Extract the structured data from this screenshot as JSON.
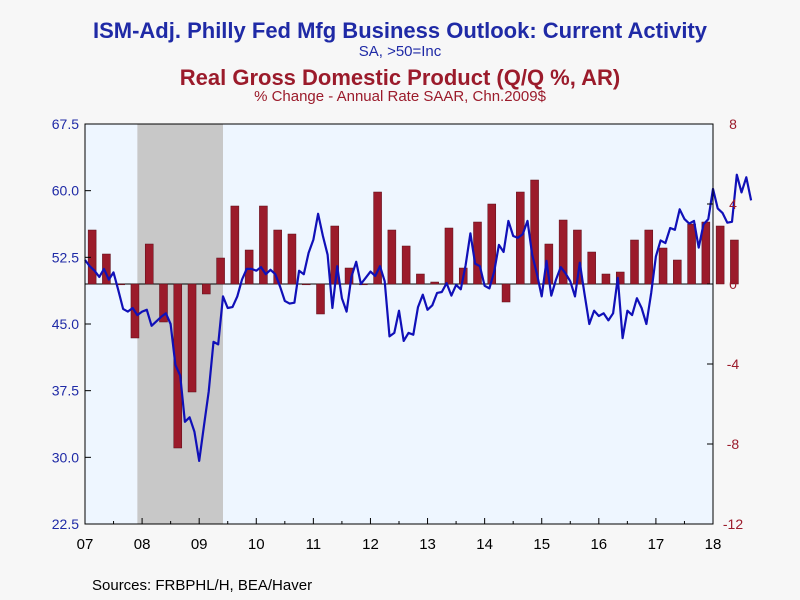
{
  "title": "ISM-Adj. Philly Fed Mfg Business Outlook: Current Activity",
  "subtitle": "SA, >50=Inc",
  "title2": "Real Gross Domestic Product (Q/Q %, AR)",
  "subtitle2": "% Change - Annual Rate     SAAR, Chn.2009$",
  "source": "Sources:  FRBPHL/H, BEA/Haver",
  "colors": {
    "line": "#1010b8",
    "bars": "#9b1b2b",
    "plot_bg": "#eef6ff",
    "recession": "#c8c8c8",
    "left_axis": "#1f2aa6",
    "right_axis": "#9b1b2b"
  },
  "chart_data": {
    "type": "line+bar",
    "x_tick_labels": [
      "07",
      "08",
      "09",
      "10",
      "11",
      "12",
      "13",
      "14",
      "15",
      "16",
      "17",
      "18"
    ],
    "xlim": [
      2007.0,
      2018.0
    ],
    "left_axis": {
      "ticks": [
        "22.5",
        "30.0",
        "37.5",
        "45.0",
        "52.5",
        "60.0",
        "67.5"
      ],
      "ylim": [
        22.5,
        67.5
      ]
    },
    "right_axis": {
      "ticks": [
        "-12",
        "-8",
        "-4",
        "0",
        "4",
        "8"
      ],
      "ylim": [
        -12,
        8
      ]
    },
    "recession": {
      "start": 2007.917,
      "end": 2009.417
    },
    "bar_series": {
      "name": "Real Gross Domestic Product (Q/Q %, AR)",
      "axis": "right",
      "points": [
        {
          "x": 2007.125,
          "y": 2.7
        },
        {
          "x": 2007.375,
          "y": 1.5
        },
        {
          "x": 2007.625,
          "y": 0.0
        },
        {
          "x": 2007.875,
          "y": -2.7
        },
        {
          "x": 2008.125,
          "y": 2.0
        },
        {
          "x": 2008.375,
          "y": -1.9
        },
        {
          "x": 2008.625,
          "y": -8.2
        },
        {
          "x": 2008.875,
          "y": -5.4
        },
        {
          "x": 2009.125,
          "y": -0.5
        },
        {
          "x": 2009.375,
          "y": 1.3
        },
        {
          "x": 2009.625,
          "y": 3.9
        },
        {
          "x": 2009.875,
          "y": 1.7
        },
        {
          "x": 2010.125,
          "y": 3.9
        },
        {
          "x": 2010.375,
          "y": 2.7
        },
        {
          "x": 2010.625,
          "y": 2.5
        },
        {
          "x": 2010.875,
          "y": 0.0
        },
        {
          "x": 2011.125,
          "y": -1.5
        },
        {
          "x": 2011.375,
          "y": 2.9
        },
        {
          "x": 2011.625,
          "y": 0.8
        },
        {
          "x": 2011.875,
          "y": 0.0
        },
        {
          "x": 2012.125,
          "y": 4.6
        },
        {
          "x": 2012.375,
          "y": 2.7
        },
        {
          "x": 2012.625,
          "y": 1.9
        },
        {
          "x": 2012.875,
          "y": 0.5
        },
        {
          "x": 2013.125,
          "y": 0.1
        },
        {
          "x": 2013.375,
          "y": 2.8
        },
        {
          "x": 2013.625,
          "y": 0.8
        },
        {
          "x": 2013.875,
          "y": 3.1
        },
        {
          "x": 2014.125,
          "y": 4.0
        },
        {
          "x": 2014.375,
          "y": -0.9
        },
        {
          "x": 2014.625,
          "y": 4.6
        },
        {
          "x": 2014.875,
          "y": 5.2
        },
        {
          "x": 2015.125,
          "y": 2.0
        },
        {
          "x": 2015.375,
          "y": 3.2
        },
        {
          "x": 2015.625,
          "y": 2.7
        },
        {
          "x": 2015.875,
          "y": 1.6
        },
        {
          "x": 2016.125,
          "y": 0.5
        },
        {
          "x": 2016.375,
          "y": 0.6
        },
        {
          "x": 2016.625,
          "y": 2.2
        },
        {
          "x": 2016.875,
          "y": 2.7
        },
        {
          "x": 2017.125,
          "y": 1.8
        },
        {
          "x": 2017.375,
          "y": 1.2
        },
        {
          "x": 2017.625,
          "y": 3.0
        },
        {
          "x": 2017.875,
          "y": 3.1
        },
        {
          "x": 2018.125,
          "y": 2.9
        },
        {
          "x": 2018.375,
          "y": 2.2
        }
      ]
    },
    "line_series": {
      "name": "ISM-Adj. Philly Fed Mfg Business Outlook: Current Activity",
      "axis": "left",
      "points": [
        {
          "x": 2007.0,
          "y": 52.2
        },
        {
          "x": 2007.083,
          "y": 51.5
        },
        {
          "x": 2007.167,
          "y": 51.0
        },
        {
          "x": 2007.25,
          "y": 50.3
        },
        {
          "x": 2007.333,
          "y": 51.2
        },
        {
          "x": 2007.417,
          "y": 50.0
        },
        {
          "x": 2007.5,
          "y": 50.8
        },
        {
          "x": 2007.583,
          "y": 48.8
        },
        {
          "x": 2007.667,
          "y": 46.7
        },
        {
          "x": 2007.75,
          "y": 46.4
        },
        {
          "x": 2007.833,
          "y": 46.8
        },
        {
          "x": 2007.917,
          "y": 46.0
        },
        {
          "x": 2008.0,
          "y": 46.4
        },
        {
          "x": 2008.083,
          "y": 46.6
        },
        {
          "x": 2008.167,
          "y": 44.8
        },
        {
          "x": 2008.25,
          "y": 45.3
        },
        {
          "x": 2008.333,
          "y": 45.8
        },
        {
          "x": 2008.417,
          "y": 46.2
        },
        {
          "x": 2008.5,
          "y": 45.0
        },
        {
          "x": 2008.583,
          "y": 40.4
        },
        {
          "x": 2008.667,
          "y": 39.2
        },
        {
          "x": 2008.75,
          "y": 34.0
        },
        {
          "x": 2008.833,
          "y": 34.5
        },
        {
          "x": 2008.917,
          "y": 32.9
        },
        {
          "x": 2009.0,
          "y": 29.6
        },
        {
          "x": 2009.083,
          "y": 33.5
        },
        {
          "x": 2009.167,
          "y": 37.4
        },
        {
          "x": 2009.25,
          "y": 43.0
        },
        {
          "x": 2009.333,
          "y": 42.7
        },
        {
          "x": 2009.417,
          "y": 48.1
        },
        {
          "x": 2009.5,
          "y": 46.8
        },
        {
          "x": 2009.583,
          "y": 46.9
        },
        {
          "x": 2009.667,
          "y": 48.1
        },
        {
          "x": 2009.75,
          "y": 50.0
        },
        {
          "x": 2009.833,
          "y": 51.2
        },
        {
          "x": 2009.917,
          "y": 51.2
        },
        {
          "x": 2010.0,
          "y": 51.0
        },
        {
          "x": 2010.083,
          "y": 51.4
        },
        {
          "x": 2010.167,
          "y": 50.6
        },
        {
          "x": 2010.25,
          "y": 51.1
        },
        {
          "x": 2010.333,
          "y": 50.6
        },
        {
          "x": 2010.417,
          "y": 49.2
        },
        {
          "x": 2010.5,
          "y": 47.6
        },
        {
          "x": 2010.583,
          "y": 47.3
        },
        {
          "x": 2010.667,
          "y": 47.4
        },
        {
          "x": 2010.75,
          "y": 51.0
        },
        {
          "x": 2010.833,
          "y": 50.6
        },
        {
          "x": 2010.917,
          "y": 53.0
        },
        {
          "x": 2011.0,
          "y": 54.5
        },
        {
          "x": 2011.083,
          "y": 57.4
        },
        {
          "x": 2011.167,
          "y": 54.9
        },
        {
          "x": 2011.25,
          "y": 52.8
        },
        {
          "x": 2011.333,
          "y": 46.8
        },
        {
          "x": 2011.417,
          "y": 51.5
        },
        {
          "x": 2011.5,
          "y": 47.9
        },
        {
          "x": 2011.583,
          "y": 46.4
        },
        {
          "x": 2011.667,
          "y": 50.3
        },
        {
          "x": 2011.75,
          "y": 52.0
        },
        {
          "x": 2011.833,
          "y": 49.5
        },
        {
          "x": 2011.917,
          "y": 50.2
        },
        {
          "x": 2012.0,
          "y": 50.9
        },
        {
          "x": 2012.083,
          "y": 50.4
        },
        {
          "x": 2012.167,
          "y": 51.5
        },
        {
          "x": 2012.25,
          "y": 49.8
        },
        {
          "x": 2012.333,
          "y": 43.6
        },
        {
          "x": 2012.417,
          "y": 44.0
        },
        {
          "x": 2012.5,
          "y": 46.5
        },
        {
          "x": 2012.583,
          "y": 43.1
        },
        {
          "x": 2012.667,
          "y": 44.0
        },
        {
          "x": 2012.75,
          "y": 43.8
        },
        {
          "x": 2012.833,
          "y": 46.9
        },
        {
          "x": 2012.917,
          "y": 48.3
        },
        {
          "x": 2013.0,
          "y": 46.6
        },
        {
          "x": 2013.083,
          "y": 47.1
        },
        {
          "x": 2013.167,
          "y": 48.5
        },
        {
          "x": 2013.25,
          "y": 48.6
        },
        {
          "x": 2013.333,
          "y": 49.6
        },
        {
          "x": 2013.417,
          "y": 48.2
        },
        {
          "x": 2013.5,
          "y": 49.4
        },
        {
          "x": 2013.583,
          "y": 48.9
        },
        {
          "x": 2013.667,
          "y": 51.6
        },
        {
          "x": 2013.75,
          "y": 55.2
        },
        {
          "x": 2013.833,
          "y": 51.8
        },
        {
          "x": 2013.917,
          "y": 51.5
        },
        {
          "x": 2014.0,
          "y": 49.3
        },
        {
          "x": 2014.083,
          "y": 49.0
        },
        {
          "x": 2014.167,
          "y": 50.9
        },
        {
          "x": 2014.25,
          "y": 53.9
        },
        {
          "x": 2014.333,
          "y": 53.1
        },
        {
          "x": 2014.417,
          "y": 56.6
        },
        {
          "x": 2014.5,
          "y": 54.9
        },
        {
          "x": 2014.583,
          "y": 54.7
        },
        {
          "x": 2014.667,
          "y": 55.1
        },
        {
          "x": 2014.75,
          "y": 56.6
        },
        {
          "x": 2014.833,
          "y": 52.8
        },
        {
          "x": 2014.917,
          "y": 50.6
        },
        {
          "x": 2015.0,
          "y": 48.1
        },
        {
          "x": 2015.083,
          "y": 52.1
        },
        {
          "x": 2015.167,
          "y": 48.2
        },
        {
          "x": 2015.25,
          "y": 50.0
        },
        {
          "x": 2015.333,
          "y": 51.4
        },
        {
          "x": 2015.417,
          "y": 50.7
        },
        {
          "x": 2015.5,
          "y": 49.8
        },
        {
          "x": 2015.583,
          "y": 48.1
        },
        {
          "x": 2015.667,
          "y": 51.9
        },
        {
          "x": 2015.75,
          "y": 48.4
        },
        {
          "x": 2015.833,
          "y": 45.0
        },
        {
          "x": 2015.917,
          "y": 46.5
        },
        {
          "x": 2016.0,
          "y": 45.9
        },
        {
          "x": 2016.083,
          "y": 46.2
        },
        {
          "x": 2016.167,
          "y": 45.4
        },
        {
          "x": 2016.25,
          "y": 46.2
        },
        {
          "x": 2016.333,
          "y": 50.2
        },
        {
          "x": 2016.417,
          "y": 43.4
        },
        {
          "x": 2016.5,
          "y": 46.5
        },
        {
          "x": 2016.583,
          "y": 46.0
        },
        {
          "x": 2016.667,
          "y": 47.9
        },
        {
          "x": 2016.75,
          "y": 46.8
        },
        {
          "x": 2016.833,
          "y": 45.0
        },
        {
          "x": 2016.917,
          "y": 48.5
        },
        {
          "x": 2017.0,
          "y": 52.6
        },
        {
          "x": 2017.083,
          "y": 54.4
        },
        {
          "x": 2017.167,
          "y": 54.1
        },
        {
          "x": 2017.25,
          "y": 55.8
        },
        {
          "x": 2017.333,
          "y": 55.6
        },
        {
          "x": 2017.417,
          "y": 57.9
        },
        {
          "x": 2017.5,
          "y": 56.8
        },
        {
          "x": 2017.583,
          "y": 56.3
        },
        {
          "x": 2017.667,
          "y": 56.6
        },
        {
          "x": 2017.75,
          "y": 53.6
        },
        {
          "x": 2017.833,
          "y": 56.2
        },
        {
          "x": 2017.917,
          "y": 56.8
        },
        {
          "x": 2018.0,
          "y": 60.2
        },
        {
          "x": 2018.083,
          "y": 58.0
        },
        {
          "x": 2018.167,
          "y": 57.5
        },
        {
          "x": 2018.25,
          "y": 56.4
        },
        {
          "x": 2018.333,
          "y": 56.5
        },
        {
          "x": 2018.417,
          "y": 61.8
        },
        {
          "x": 2018.5,
          "y": 59.8
        },
        {
          "x": 2018.583,
          "y": 61.5
        },
        {
          "x": 2018.667,
          "y": 58.9
        }
      ]
    }
  }
}
